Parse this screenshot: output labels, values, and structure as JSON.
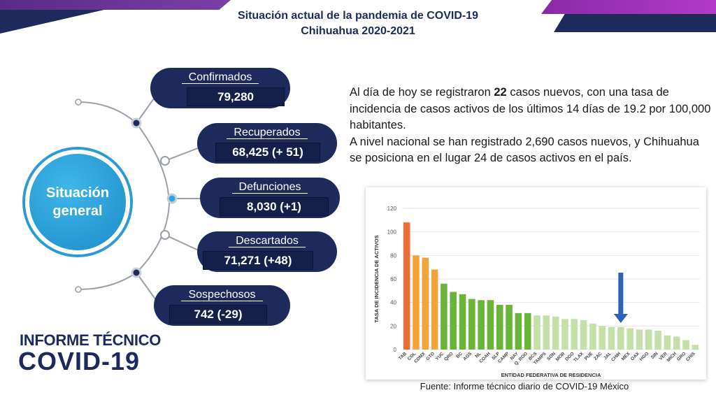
{
  "title": {
    "line1": "Situación actual de la pandemia de COVID-19",
    "line2": "Chihuahua 2020-2021"
  },
  "center": {
    "line1": "Situación",
    "line2": "general"
  },
  "stats": [
    {
      "label": "Confirmados",
      "value": "79,280"
    },
    {
      "label": "Recuperados",
      "value": "68,425 (+ 51)"
    },
    {
      "label": "Defunciones",
      "value": "8,030 (+1)"
    },
    {
      "label": "Descartados",
      "value": "71,271 (+48)"
    },
    {
      "label": "Sospechosos",
      "value": "742 (-29)"
    }
  ],
  "paragraph": {
    "p1_pre": "Al día de hoy se registraron ",
    "p1_bold": "22",
    "p1_post": " casos nuevos, con una tasa de incidencia de casos activos de los últimos 14 días de 19.2 por 100,000 habitantes.",
    "p2": "A nivel nacional se han registrado 2,690 casos nuevos, y Chihuahua se posiciona en el lugar 24 de casos activos en el país."
  },
  "logo": {
    "line1": "INFORME TÉCNICO",
    "line2": "COVID-19"
  },
  "source": "Fuente: Informe técnico diario de COVID-19 México",
  "colors": {
    "navy": "#1d2a5b",
    "blue": "#29a8e0",
    "arrow": "#2f63b5",
    "red": "#ef6a3a",
    "orange": "#f5a23a",
    "green": "#6bb43a",
    "lightgreen": "#c4e0a8"
  },
  "chart_data": {
    "type": "bar",
    "xlabel": "ENTIDAD FEDERATIVA DE RESIDENCIA",
    "ylabel": "TASA DE INCIDENCIA DE ACTIVOS",
    "ylim": [
      0,
      120
    ],
    "yticks": [
      0,
      20,
      40,
      60,
      80,
      100,
      120
    ],
    "grid": true,
    "highlight": "CHIH",
    "categories": [
      "TAB",
      "COL",
      "CDMX",
      "GTO",
      "YUC",
      "QRO",
      "BC",
      "AGS",
      "NL",
      "COAH",
      "SLP",
      "CAMP",
      "NAY",
      "Q. ROO",
      "BCS",
      "TAMPS",
      "SON",
      "MOR",
      "DGO",
      "TLAX",
      "PUE",
      "ZAC",
      "JAL",
      "CHIH",
      "MEX",
      "OAX",
      "HGO",
      "SIN",
      "VER",
      "MICH",
      "GRO",
      "CHIS"
    ],
    "values": [
      108,
      80,
      78,
      68,
      56,
      49,
      47,
      43,
      42,
      42,
      38,
      38,
      31,
      31,
      29,
      29,
      28,
      26,
      26,
      25,
      22,
      20,
      19,
      19,
      18,
      17,
      17,
      16,
      12,
      11,
      8,
      4
    ],
    "color_groups": [
      "red",
      "orange",
      "orange",
      "orange",
      "green",
      "green",
      "green",
      "green",
      "green",
      "green",
      "green",
      "green",
      "green",
      "green",
      "lightgreen",
      "lightgreen",
      "lightgreen",
      "lightgreen",
      "lightgreen",
      "lightgreen",
      "lightgreen",
      "lightgreen",
      "lightgreen",
      "lightgreen",
      "lightgreen",
      "lightgreen",
      "lightgreen",
      "lightgreen",
      "lightgreen",
      "lightgreen",
      "lightgreen",
      "lightgreen"
    ]
  }
}
